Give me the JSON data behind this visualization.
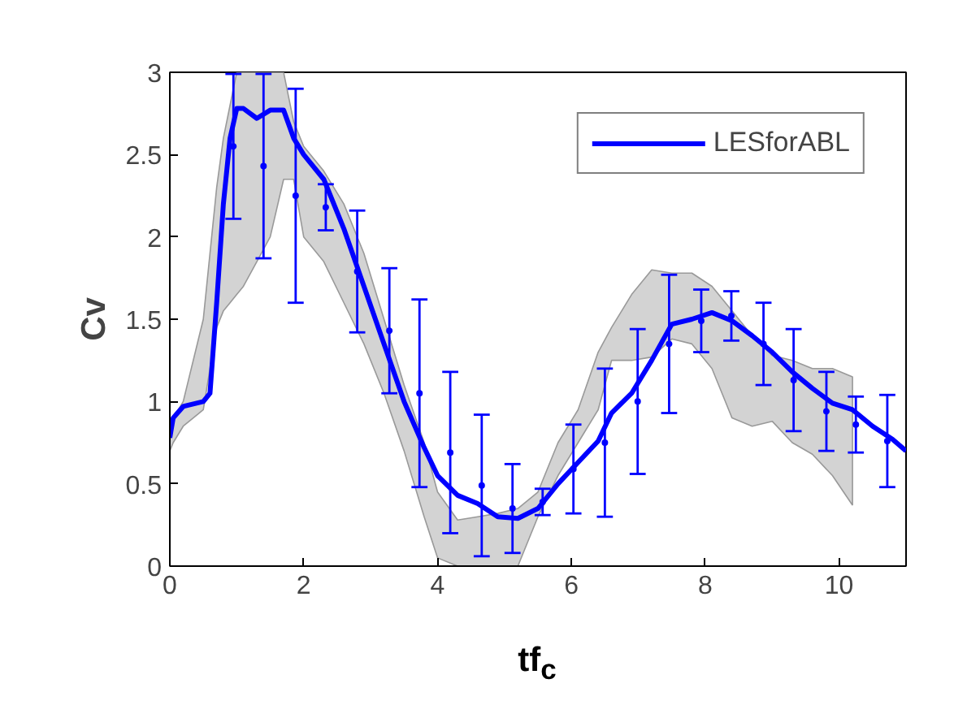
{
  "chart_data": {
    "type": "line",
    "xlabel": "tf$_{c}$",
    "ylabel": "Cv",
    "xlim": [
      0,
      11
    ],
    "ylim": [
      0,
      3
    ],
    "xticks": [
      0,
      2,
      4,
      6,
      8,
      10
    ],
    "yticks": [
      0,
      0.5,
      1,
      1.5,
      2,
      2.5,
      3
    ],
    "grid": false,
    "legend": "top right",
    "line_style": "solid",
    "marker": "none",
    "series": [
      {
        "name": "LESforABL",
        "color": "#0000ff",
        "x": [
          0,
          0.05,
          0.2,
          0.5,
          0.6,
          0.7,
          0.8,
          0.9,
          1.0,
          1.1,
          1.3,
          1.5,
          1.7,
          1.85,
          2.0,
          2.3,
          2.6,
          2.9,
          3.2,
          3.5,
          3.8,
          4.0,
          4.3,
          4.6,
          4.9,
          5.2,
          5.5,
          5.8,
          6.1,
          6.4,
          6.6,
          6.9,
          7.2,
          7.5,
          7.8,
          8.1,
          8.4,
          8.7,
          9.0,
          9.3,
          9.6,
          9.9,
          10.2,
          10.5,
          10.8,
          11
        ],
        "values": [
          0.78,
          0.9,
          0.97,
          1.0,
          1.05,
          1.6,
          2.2,
          2.6,
          2.78,
          2.78,
          2.72,
          2.77,
          2.77,
          2.6,
          2.5,
          2.35,
          2.05,
          1.7,
          1.35,
          1.0,
          0.72,
          0.55,
          0.43,
          0.38,
          0.3,
          0.29,
          0.35,
          0.5,
          0.63,
          0.76,
          0.93,
          1.05,
          1.25,
          1.47,
          1.5,
          1.54,
          1.49,
          1.4,
          1.3,
          1.18,
          1.08,
          0.99,
          0.95,
          0.85,
          0.77,
          0.7
        ],
        "lower": [
          0.7,
          0.75,
          0.85,
          0.95,
          1.2,
          1.45,
          1.55,
          1.6,
          1.65,
          1.7,
          1.85,
          2.0,
          2.35,
          2.35,
          2.0,
          1.85,
          1.6,
          1.35,
          1.05,
          0.7,
          0.3,
          0.05,
          0,
          0,
          0,
          0,
          0.3,
          0.55,
          0.75,
          0.95,
          1.25,
          1.25,
          1.27,
          1.38,
          1.35,
          1.2,
          0.9,
          0.85,
          0.88,
          0.75,
          0.68,
          0.55,
          0.37,
          null,
          null,
          null
        ],
        "upper": [
          0.8,
          0.9,
          1.0,
          1.5,
          1.9,
          2.3,
          2.6,
          2.8,
          3.0,
          3.0,
          3.0,
          3.0,
          3.0,
          2.7,
          2.55,
          2.4,
          2.2,
          1.9,
          1.5,
          1.1,
          0.75,
          0.45,
          0.28,
          0.3,
          0.32,
          0.35,
          0.45,
          0.75,
          0.95,
          1.3,
          1.45,
          1.65,
          1.8,
          1.78,
          1.78,
          1.7,
          1.55,
          1.4,
          1.28,
          1.25,
          1.2,
          1.2,
          1.15,
          null,
          null,
          null
        ]
      },
      {
        "type": "scatter",
        "marker": "circle",
        "color": "#0000ff",
        "x": [
          0.95,
          1.4,
          1.88,
          2.33,
          2.8,
          3.28,
          3.73,
          4.19,
          4.66,
          5.12,
          5.57,
          6.03,
          6.5,
          6.99,
          7.46,
          7.94,
          8.39,
          8.87,
          9.32,
          9.81,
          10.25,
          10.72
        ],
        "values": [
          2.55,
          2.43,
          2.25,
          2.18,
          1.79,
          1.43,
          1.05,
          0.69,
          0.49,
          0.35,
          0.39,
          0.59,
          0.75,
          1.0,
          1.35,
          1.49,
          1.52,
          1.35,
          1.13,
          0.94,
          0.86,
          0.76
        ],
        "errors": [
          0.44,
          0.56,
          0.65,
          0.14,
          0.37,
          0.38,
          0.57,
          0.49,
          0.43,
          0.27,
          0.08,
          0.27,
          0.45,
          0.44,
          0.42,
          0.19,
          0.15,
          0.25,
          0.31,
          0.24,
          0.17,
          0.28
        ]
      }
    ]
  }
}
